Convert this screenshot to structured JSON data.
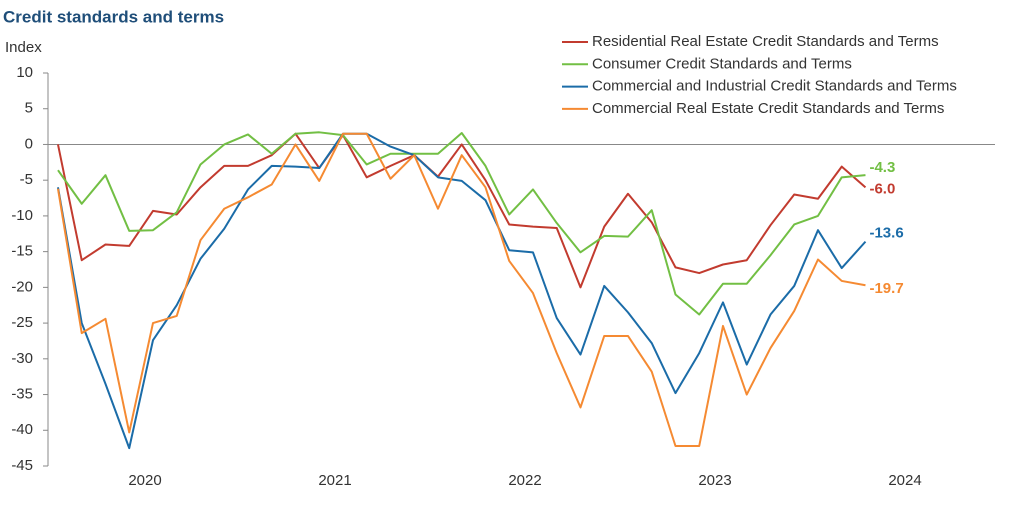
{
  "chart_data": {
    "type": "line",
    "title": "Credit standards and terms",
    "y_label": "Index",
    "x": [
      2020.042,
      2020.167,
      2020.292,
      2020.417,
      2020.542,
      2020.667,
      2020.792,
      2020.917,
      2021.042,
      2021.167,
      2021.292,
      2021.417,
      2021.542,
      2021.667,
      2021.792,
      2021.917,
      2022.042,
      2022.167,
      2022.292,
      2022.417,
      2022.542,
      2022.667,
      2022.792,
      2022.917,
      2023.042,
      2023.167,
      2023.292,
      2023.417,
      2023.542,
      2023.667,
      2023.792,
      2023.917,
      2024.042,
      2024.167,
      2024.292
    ],
    "xlim": [
      2020,
      2025
    ],
    "xticks": [
      {
        "value": 2020.5,
        "label": "2020"
      },
      {
        "value": 2021.5,
        "label": "2021"
      },
      {
        "value": 2022.5,
        "label": "2022"
      },
      {
        "value": 2023.5,
        "label": "2023"
      },
      {
        "value": 2024.5,
        "label": "2024"
      }
    ],
    "ylim": [
      -45,
      10
    ],
    "yticks": [
      10,
      5,
      0,
      -5,
      -10,
      -15,
      -20,
      -25,
      -30,
      -35,
      -40,
      -45
    ],
    "legend": "top-right",
    "series": [
      {
        "name": "Residential Real Estate Credit Standards and Terms",
        "color": "#c23b2f",
        "values": [
          0,
          -16.2,
          -14,
          -14.2,
          -9.3,
          -9.8,
          -6,
          -3,
          -3,
          -1.5,
          1.5,
          -3.3,
          1.3,
          -4.6,
          -3,
          -1.5,
          -4.5,
          0,
          -5,
          -11.2,
          -11.5,
          -11.7,
          -20,
          -11.5,
          -6.9,
          -10.9,
          -17.2,
          -18,
          -16.8,
          -16.2,
          -11.3,
          -7,
          -7.6,
          -3.1,
          -6.0
        ],
        "value_labels": [
          null,
          null,
          null,
          null,
          null,
          null,
          null,
          null,
          null,
          null,
          null,
          null,
          null,
          null,
          null,
          null,
          null,
          null,
          null,
          null,
          null,
          null,
          null,
          null,
          null,
          null,
          null,
          null,
          null,
          null,
          null,
          null,
          null,
          null,
          "-6.0"
        ]
      },
      {
        "name": "Consumer Credit Standards and Terms",
        "color": "#72bf44",
        "values": [
          -3.6,
          -8.3,
          -4.3,
          -12.1,
          -12,
          -9.5,
          -2.8,
          0,
          1.4,
          -1.3,
          1.5,
          1.7,
          1.3,
          -2.8,
          -1.3,
          -1.3,
          -1.3,
          1.6,
          -3,
          -9.8,
          -6.3,
          -11,
          -15.1,
          -12.8,
          -12.9,
          -9.2,
          -21,
          -23.8,
          -19.5,
          -19.5,
          -15.5,
          -11.2,
          -10,
          -4.6,
          -4.3
        ],
        "value_labels": [
          null,
          null,
          null,
          null,
          null,
          null,
          null,
          null,
          null,
          null,
          null,
          null,
          null,
          null,
          null,
          null,
          null,
          null,
          null,
          null,
          null,
          null,
          null,
          null,
          null,
          null,
          null,
          null,
          null,
          null,
          null,
          null,
          null,
          null,
          "-4.3"
        ]
      },
      {
        "name": "Commercial and Industrial Credit Standards and Terms",
        "color": "#1b6ca8",
        "values": [
          -6,
          -25,
          -33.5,
          -42.5,
          -27.4,
          -22.5,
          -16,
          -11.8,
          -6.3,
          -3,
          -3.1,
          -3.3,
          1.5,
          1.5,
          -0.3,
          -1.5,
          -4.6,
          -5.1,
          -7.8,
          -14.8,
          -15.1,
          -24.3,
          -29.4,
          -19.8,
          -23.5,
          -27.8,
          -34.8,
          -29.2,
          -22.1,
          -30.8,
          -23.8,
          -19.8,
          -12,
          -17.3,
          -13.6
        ],
        "value_labels": [
          null,
          null,
          null,
          null,
          null,
          null,
          null,
          null,
          null,
          null,
          null,
          null,
          null,
          null,
          null,
          null,
          null,
          null,
          null,
          null,
          null,
          null,
          null,
          null,
          null,
          null,
          null,
          null,
          null,
          null,
          null,
          null,
          null,
          null,
          "-13.6"
        ]
      },
      {
        "name": "Commercial Real Estate Credit Standards and Terms",
        "color": "#f58a32",
        "values": [
          -6.2,
          -26.4,
          -24.4,
          -40.3,
          -25,
          -24,
          -13.4,
          -9,
          -7.4,
          -5.6,
          0,
          -5.1,
          1.5,
          1.5,
          -4.8,
          -1.5,
          -9,
          -1.5,
          -6,
          -16.3,
          -20.8,
          -29.2,
          -36.8,
          -26.8,
          -26.8,
          -31.8,
          -42.2,
          -42.2,
          -25.4,
          -35,
          -28.5,
          -23.3,
          -16.1,
          -19.1,
          -19.7
        ],
        "value_labels": [
          null,
          null,
          null,
          null,
          null,
          null,
          null,
          null,
          null,
          null,
          null,
          null,
          null,
          null,
          null,
          null,
          null,
          null,
          null,
          null,
          null,
          null,
          null,
          null,
          null,
          null,
          null,
          null,
          null,
          null,
          null,
          null,
          null,
          null,
          "-19.7"
        ]
      }
    ]
  }
}
